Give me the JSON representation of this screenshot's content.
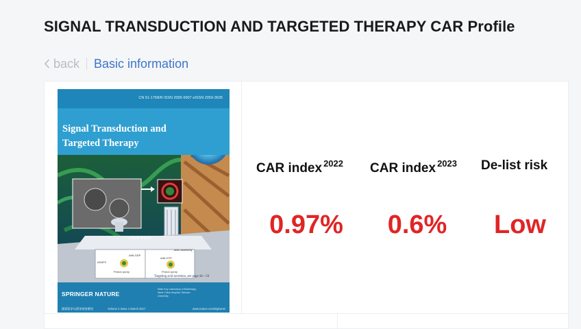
{
  "header": {
    "title": "SIGNAL TRANSDUCTION AND TARGETED THERAPY CAR Profile"
  },
  "breadcrumb": {
    "back_label": "back",
    "current_label": "Basic information"
  },
  "cover": {
    "issn_line": "CN 51-1758/R   ISSN 2095-9907   eISSN 2059-3635",
    "journal_title": "Signal Transduction and Targeted Therapy",
    "art_labels": {
      "ko": "ASAP3 KO",
      "asap3": "ASAP3",
      "arf6gdp": "Arf6-GDP",
      "arf6gtp": "Arf6-GTP",
      "actin": "actin assembly",
      "pump1": "Proton pump",
      "pump2": "Proton pump"
    },
    "caption": "Targeting acid secretion, see page 44—54",
    "publisher": "SPRINGER NATURE",
    "institution": "State Key Laboratory of Biotherapy, West China Hospital, Sichuan University",
    "footer_left": "国家医学与药学综合期刊",
    "footer_mid": "Volume 2   Issue 1   March 2017",
    "footer_right": "www.nature.com/sigtrans/"
  },
  "metrics": [
    {
      "label": "CAR index",
      "sup": "2022",
      "value": "0.97%"
    },
    {
      "label": "CAR index",
      "sup": "2023",
      "value": "0.6%"
    },
    {
      "label": "De-list risk",
      "sup": "",
      "value": "Low"
    }
  ],
  "colors": {
    "accent": "#3c75c9",
    "value_red": "#e02525",
    "muted": "#b9bcc2"
  }
}
